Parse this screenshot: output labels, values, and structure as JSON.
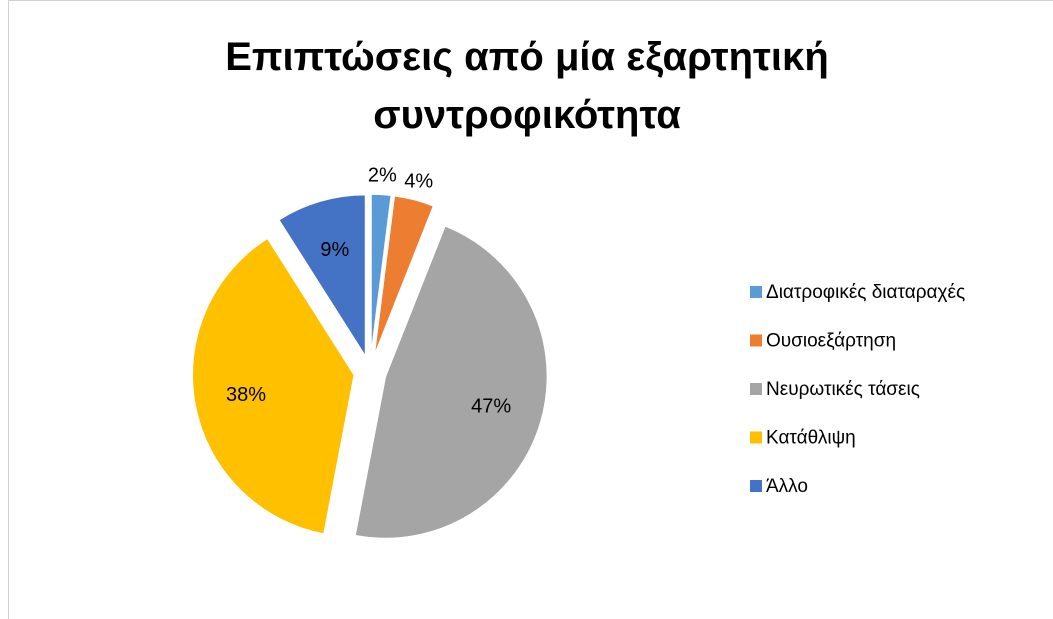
{
  "chart_data": {
    "type": "pie",
    "title": "Επιπτώσεις από μία εξαρτητική συντροφικότητα",
    "categories": [
      "Διατροφικές διαταραχές",
      "Ουσιοεξάρτηση",
      "Νευρωτικές τάσεις",
      "Κατάθλιψη",
      "Άλλο"
    ],
    "values": [
      2,
      4,
      47,
      38,
      9
    ],
    "value_labels": [
      "2%",
      "4%",
      "47%",
      "38%",
      "9%"
    ],
    "colors": [
      "#5b9bd5",
      "#ed7d31",
      "#a5a5a5",
      "#ffc000",
      "#4472c4"
    ],
    "legend": "right"
  }
}
